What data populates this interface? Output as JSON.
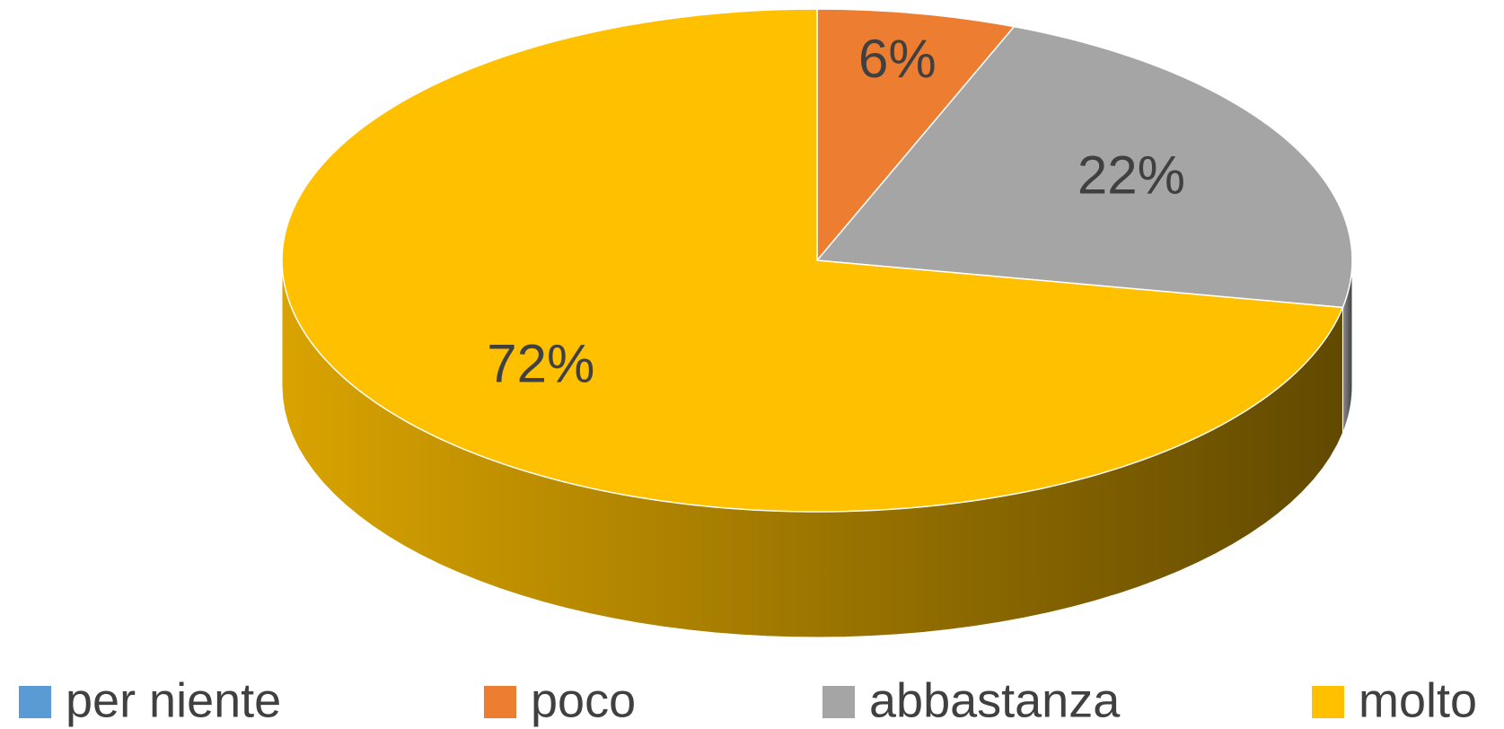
{
  "chart_data": {
    "type": "pie",
    "style": "3d",
    "categories": [
      "per niente",
      "poco",
      "abbastanza",
      "molto"
    ],
    "values": [
      0,
      6,
      22,
      72
    ],
    "value_labels": [
      null,
      "6%",
      "22%",
      "72%"
    ],
    "colors": [
      "#5b9bd5",
      "#ed7d31",
      "#a5a5a5",
      "#ffc000"
    ],
    "legend": "bottom"
  }
}
